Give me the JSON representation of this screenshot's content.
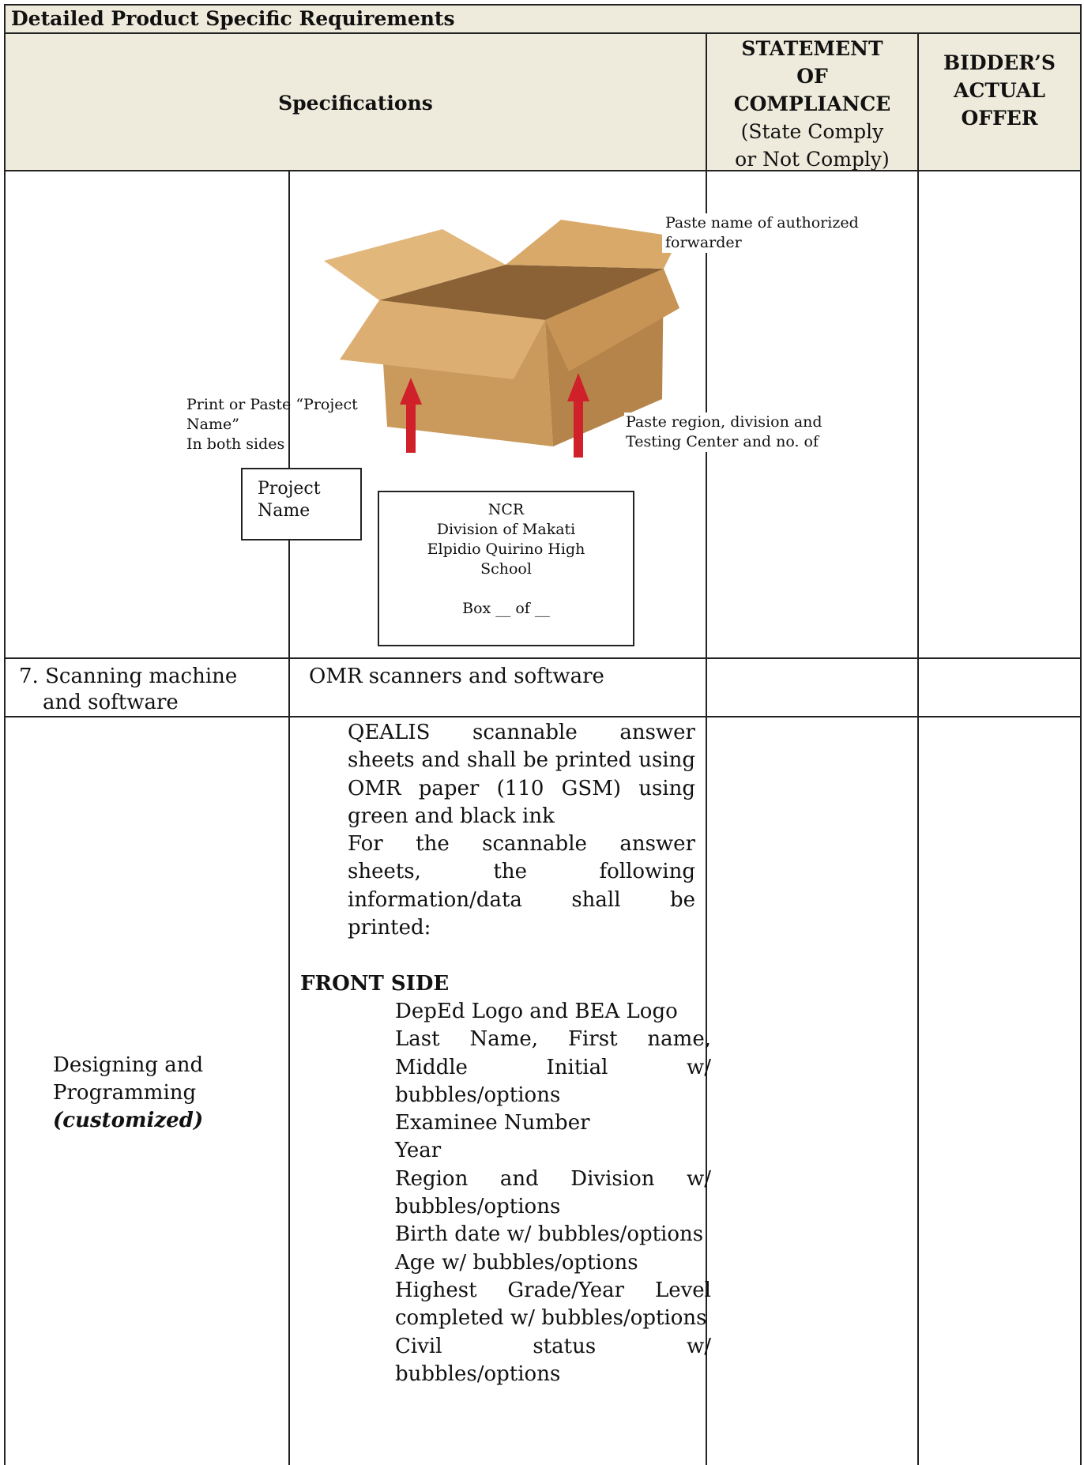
{
  "header": {
    "title": "Detailed Product Specific Requirements",
    "specifications": "Specifications",
    "compliance_title": [
      "STATEMENT",
      "OF",
      "COMPLIANCE"
    ],
    "compliance_note": [
      "(State Comply",
      "or Not Comply)"
    ],
    "offer": [
      "BIDDER’S",
      "ACTUAL",
      "OFFER"
    ]
  },
  "diagram": {
    "forwarder_label": [
      "Paste name of authorized",
      "forwarder"
    ],
    "project_label": [
      "Print or Paste “Project",
      "Name”",
      "In both sides"
    ],
    "project_box": [
      "Project",
      "Name"
    ],
    "region_label": [
      "Paste region, division and",
      "Testing Center and no. of"
    ],
    "address": [
      "NCR",
      "Division of Makati",
      "Elpidio Quirino High",
      "School",
      "",
      "Box __ of __"
    ]
  },
  "rows": [
    {
      "item": [
        "7. Scanning machine",
        "and software"
      ],
      "spec": "OMR scanners and software"
    },
    {
      "item": [
        "Designing and",
        "Programming"
      ],
      "item_note": "(customized)",
      "bullets": [
        "QEALIS scannable answer sheets and shall be printed using OMR paper (110 GSM) using green and black ink",
        "For the scannable answer sheets, the following information/data shall be printed:"
      ],
      "section": "FRONT SIDE",
      "front_items": [
        "DepEd Logo and BEA Logo",
        "Last Name, First name, Middle Initial w/ bubbles/options",
        "Examinee Number",
        "Year",
        "Region and Division w/ bubbles/options",
        "Birth date w/ bubbles/options",
        "Age w/ bubbles/options",
        "Highest Grade/Year Level completed w/ bubbles/options",
        "Civil status w/ bubbles/options"
      ]
    }
  ]
}
